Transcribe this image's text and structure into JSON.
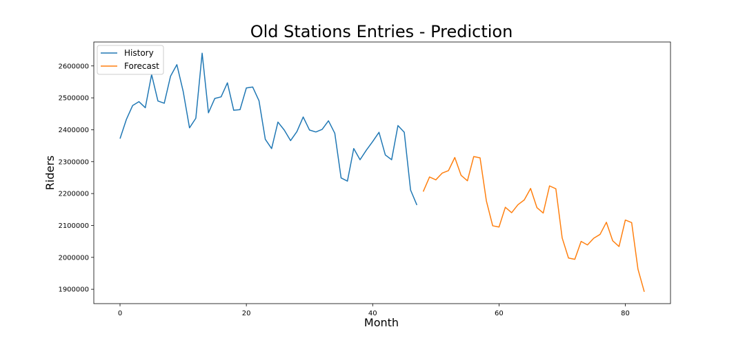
{
  "chart_data": {
    "type": "line",
    "title": "Old Stations Entries - Prediction",
    "xlabel": "Month",
    "ylabel": "Riders",
    "xlim": [
      -4.15,
      87.15
    ],
    "ylim": [
      1855000,
      2675000
    ],
    "xticks": [
      0,
      20,
      40,
      60,
      80
    ],
    "yticks": [
      1900000,
      2000000,
      2100000,
      2200000,
      2300000,
      2400000,
      2500000,
      2600000
    ],
    "grid": false,
    "legend": "upper left",
    "series": [
      {
        "name": "History",
        "color": "#1f77b4",
        "x": [
          0,
          1,
          2,
          3,
          4,
          5,
          6,
          7,
          8,
          9,
          10,
          11,
          12,
          13,
          14,
          15,
          16,
          17,
          18,
          19,
          20,
          21,
          22,
          23,
          24,
          25,
          26,
          27,
          28,
          29,
          30,
          31,
          32,
          33,
          34,
          35,
          36,
          37,
          38,
          39,
          40,
          41,
          42,
          43,
          44,
          45,
          46,
          47
        ],
        "values": [
          2372000,
          2432000,
          2476000,
          2488000,
          2469000,
          2573000,
          2490000,
          2483000,
          2568000,
          2604000,
          2520000,
          2406000,
          2436000,
          2640000,
          2453000,
          2498000,
          2503000,
          2547000,
          2461000,
          2463000,
          2531000,
          2534000,
          2491000,
          2370000,
          2341000,
          2424000,
          2399000,
          2366000,
          2394000,
          2440000,
          2399000,
          2393000,
          2401000,
          2428000,
          2389000,
          2249000,
          2239000,
          2341000,
          2306000,
          2336000,
          2363000,
          2392000,
          2321000,
          2306000,
          2413000,
          2392000,
          2211000,
          2164000
        ]
      },
      {
        "name": "Forecast",
        "color": "#ff7f0e",
        "x": [
          48,
          49,
          50,
          51,
          52,
          53,
          54,
          55,
          56,
          57,
          58,
          59,
          60,
          61,
          62,
          63,
          64,
          65,
          66,
          67,
          68,
          69,
          70,
          71,
          72,
          73,
          74,
          75,
          76,
          77,
          78,
          79,
          80,
          81,
          82,
          83
        ],
        "values": [
          2206000,
          2252000,
          2243000,
          2264000,
          2272000,
          2313000,
          2257000,
          2240000,
          2316000,
          2312000,
          2177000,
          2099000,
          2095000,
          2157000,
          2140000,
          2165000,
          2180000,
          2216000,
          2156000,
          2139000,
          2224000,
          2215000,
          2061000,
          1998000,
          1994000,
          2050000,
          2039000,
          2060000,
          2072000,
          2110000,
          2052000,
          2034000,
          2117000,
          2109000,
          1963000,
          1892000
        ]
      }
    ]
  }
}
